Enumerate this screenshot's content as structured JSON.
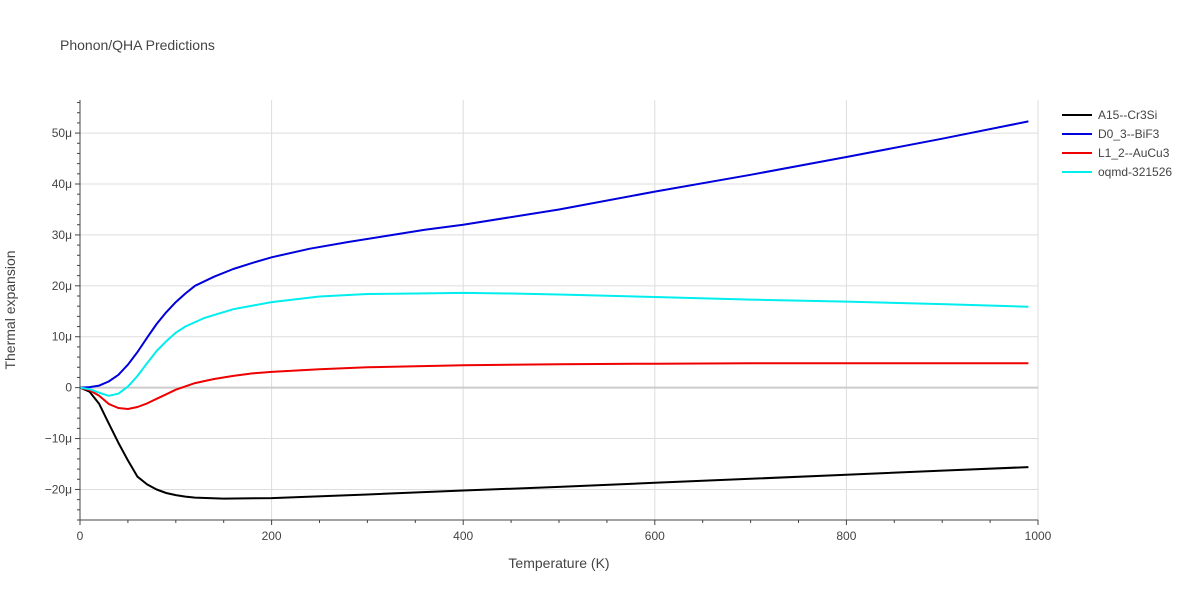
{
  "chart_data": {
    "type": "line",
    "title": "Phonon/QHA Predictions",
    "xlabel": "Temperature (K)",
    "ylabel": "Thermal expansion",
    "xlim": [
      0,
      1000
    ],
    "ylim": [
      -26,
      56.5
    ],
    "x_ticks": [
      0,
      200,
      400,
      600,
      800,
      1000
    ],
    "x_tick_labels": [
      "0",
      "200",
      "400",
      "600",
      "800",
      "1000"
    ],
    "y_ticks": [
      -20,
      -10,
      0,
      10,
      20,
      30,
      40,
      50
    ],
    "y_tick_labels": [
      "−20μ",
      "−10μ",
      "0",
      "10μ",
      "20μ",
      "30μ",
      "40μ",
      "50μ"
    ],
    "grid": true,
    "legend_position": "top-right",
    "series": [
      {
        "name": "A15--Cr3Si",
        "color": "#000000",
        "x": [
          0,
          10,
          20,
          30,
          40,
          50,
          60,
          70,
          80,
          90,
          100,
          110,
          120,
          150,
          200,
          300,
          400,
          500,
          600,
          700,
          800,
          900,
          990
        ],
        "y": [
          0,
          -0.8,
          -3.2,
          -7.0,
          -10.8,
          -14.3,
          -17.5,
          -19.0,
          -20.0,
          -20.7,
          -21.1,
          -21.4,
          -21.6,
          -21.8,
          -21.7,
          -21.0,
          -20.2,
          -19.5,
          -18.7,
          -17.9,
          -17.1,
          -16.3,
          -15.6
        ]
      },
      {
        "name": "D0_3--BiF3",
        "color": "#0000dd",
        "x": [
          0,
          10,
          20,
          30,
          40,
          50,
          60,
          70,
          80,
          90,
          100,
          110,
          120,
          140,
          160,
          180,
          200,
          240,
          280,
          320,
          360,
          400,
          500,
          600,
          700,
          800,
          900,
          990
        ],
        "y": [
          0,
          0.1,
          0.4,
          1.2,
          2.5,
          4.5,
          7.0,
          9.8,
          12.5,
          14.8,
          16.8,
          18.5,
          20.0,
          21.8,
          23.3,
          24.5,
          25.6,
          27.3,
          28.6,
          29.8,
          31.0,
          32.0,
          35.0,
          38.5,
          41.8,
          45.3,
          48.9,
          52.3
        ]
      },
      {
        "name": "L1_2--AuCu3",
        "color": "#ee0000",
        "x": [
          0,
          10,
          20,
          30,
          40,
          50,
          60,
          70,
          80,
          90,
          100,
          120,
          140,
          160,
          180,
          200,
          250,
          300,
          400,
          500,
          600,
          700,
          800,
          900,
          990
        ],
        "y": [
          0,
          -0.5,
          -1.6,
          -3.2,
          -4.0,
          -4.2,
          -3.8,
          -3.1,
          -2.2,
          -1.3,
          -0.4,
          0.9,
          1.7,
          2.3,
          2.8,
          3.1,
          3.6,
          4.0,
          4.4,
          4.6,
          4.7,
          4.8,
          4.8,
          4.8,
          4.8
        ]
      },
      {
        "name": "oqmd-321526",
        "color": "#00eeee",
        "x": [
          0,
          10,
          20,
          30,
          40,
          50,
          60,
          70,
          80,
          90,
          100,
          110,
          130,
          160,
          200,
          250,
          300,
          350,
          400,
          450,
          500,
          600,
          700,
          800,
          900,
          990
        ],
        "y": [
          0,
          -0.3,
          -1.0,
          -1.6,
          -1.2,
          0.2,
          2.3,
          4.8,
          7.2,
          9.1,
          10.8,
          12.0,
          13.7,
          15.4,
          16.8,
          17.9,
          18.4,
          18.5,
          18.6,
          18.5,
          18.3,
          17.8,
          17.3,
          16.9,
          16.4,
          15.9
        ]
      }
    ]
  }
}
